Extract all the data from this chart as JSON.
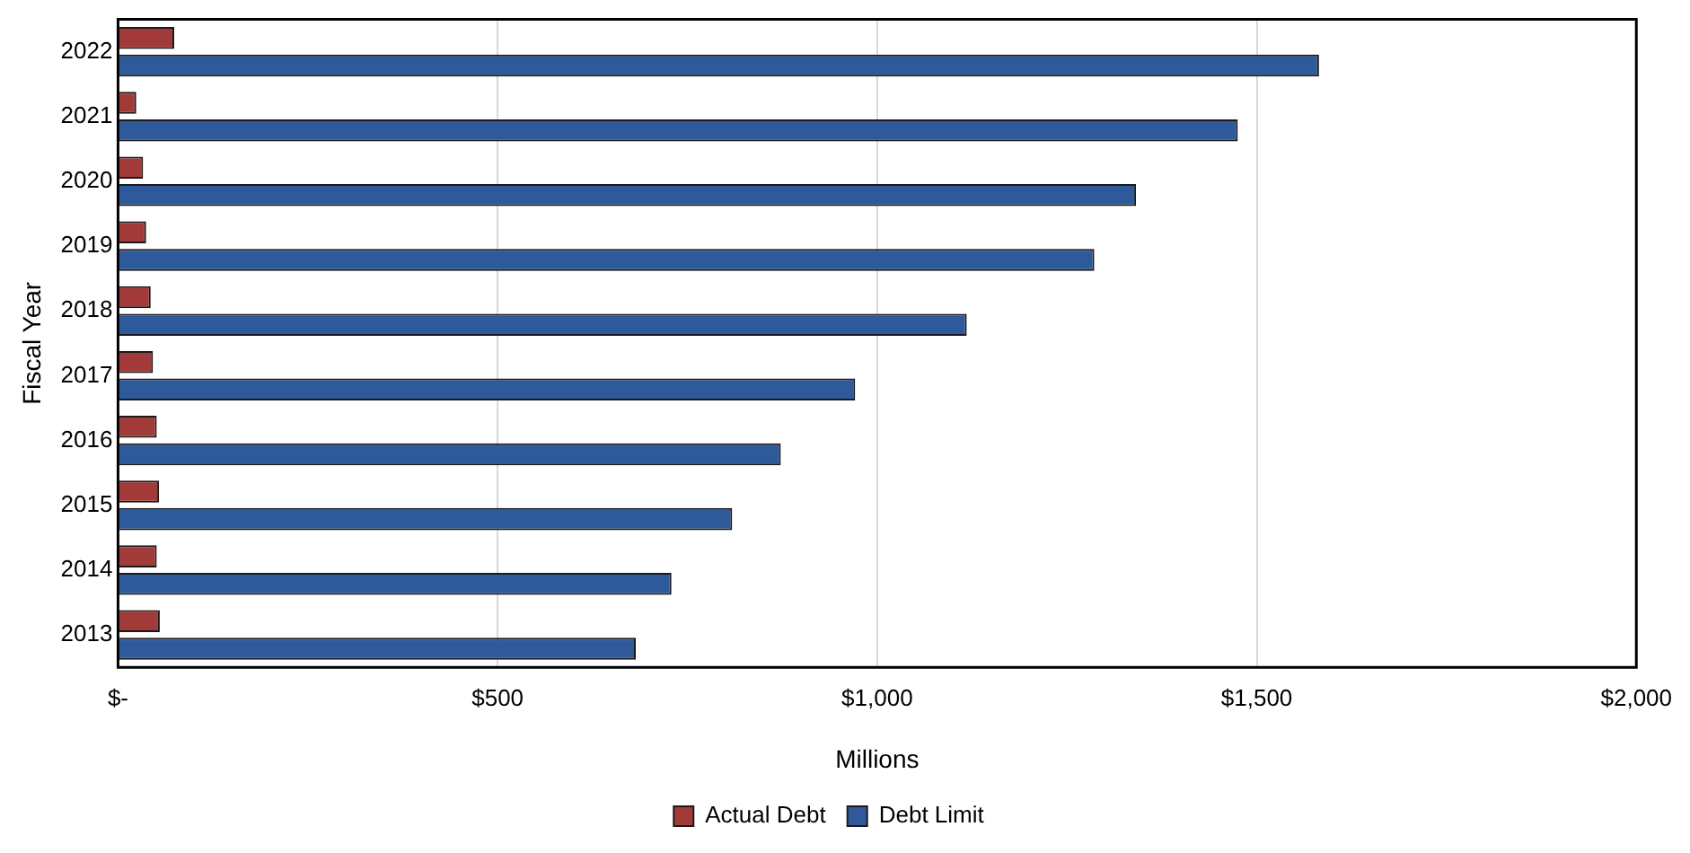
{
  "chart_data": {
    "type": "bar",
    "orientation": "horizontal",
    "xlabel": "Millions",
    "ylabel": "Fiscal Year",
    "categories": [
      "2022",
      "2021",
      "2020",
      "2019",
      "2018",
      "2017",
      "2016",
      "2015",
      "2014",
      "2013"
    ],
    "series": [
      {
        "name": "Actual Debt",
        "color": "#a33a3a",
        "values": [
          74,
          24,
          33,
          37,
          43,
          46,
          51,
          54,
          51,
          55
        ]
      },
      {
        "name": "Debt Limit",
        "color": "#2e5a9c",
        "values": [
          1582,
          1475,
          1341,
          1286,
          1118,
          971,
          873,
          809,
          729,
          682
        ]
      }
    ],
    "xlim": [
      0,
      2000
    ],
    "xticks": [
      {
        "value": 0,
        "label": "$-"
      },
      {
        "value": 500,
        "label": "$500"
      },
      {
        "value": 1000,
        "label": "$1,000"
      },
      {
        "value": 1500,
        "label": "$1,500"
      },
      {
        "value": 2000,
        "label": "$2,000"
      }
    ],
    "grid": "x",
    "legend": "bottom"
  }
}
